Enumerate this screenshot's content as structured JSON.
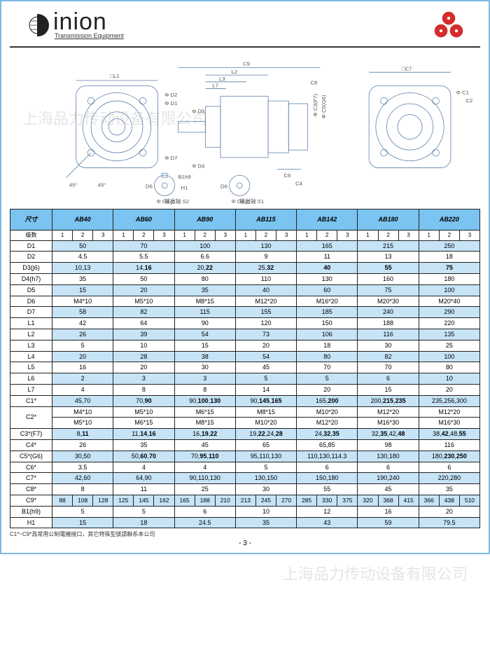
{
  "brand": {
    "name": "inion",
    "tagline": "Transmission Equipment"
  },
  "diagram_labels": {
    "s2": "输出轴 S2",
    "s1": "输出轴 S1",
    "dims": [
      "L1",
      "L2",
      "L3",
      "L7",
      "C9",
      "C8",
      "C7",
      "C1",
      "C2",
      "D1",
      "D2",
      "D4",
      "D5",
      "D7",
      "D6",
      "C4",
      "C6",
      "C3",
      "C5",
      "H1",
      "B1",
      "45°",
      "ΦD3",
      "ΦD3",
      "ΦC5",
      "ΦC3",
      "j6",
      "j6",
      "(G6)",
      "(F7)",
      "h7",
      "h9"
    ]
  },
  "table": {
    "size_label": "尺寸",
    "stage_label": "级数",
    "models": [
      "AB40",
      "AB60",
      "AB90",
      "AB115",
      "AB142",
      "AB180",
      "AB220"
    ],
    "stages": [
      "1",
      "2",
      "3"
    ],
    "rows": [
      {
        "label": "D1",
        "stripe": true,
        "vals": [
          "50",
          "70",
          "100",
          "130",
          "165",
          "215",
          "250"
        ]
      },
      {
        "label": "D2",
        "stripe": false,
        "vals": [
          "4.5",
          "5.5",
          "6.6",
          "9",
          "11",
          "13",
          "18"
        ]
      },
      {
        "label": "D3(j6)",
        "stripe": true,
        "vals": [
          "10,13",
          "14,16",
          "20,22",
          "25,32",
          "40",
          "55",
          "75"
        ],
        "bold": [
          false,
          true,
          true,
          true,
          true,
          true,
          true
        ]
      },
      {
        "label": "D4(h7)",
        "stripe": false,
        "vals": [
          "35",
          "50",
          "80",
          "110",
          "130",
          "160",
          "180"
        ]
      },
      {
        "label": "D5",
        "stripe": true,
        "vals": [
          "15",
          "20",
          "35",
          "40",
          "60",
          "75",
          "100"
        ]
      },
      {
        "label": "D6",
        "stripe": false,
        "vals": [
          "M4*10",
          "M5*10",
          "M8*15",
          "M12*20",
          "M16*20",
          "M20*30",
          "M20*40"
        ]
      },
      {
        "label": "D7",
        "stripe": true,
        "vals": [
          "58",
          "82",
          "115",
          "155",
          "185",
          "240",
          "290"
        ]
      },
      {
        "label": "L1",
        "stripe": false,
        "vals": [
          "42",
          "64",
          "90",
          "120",
          "150",
          "188",
          "220"
        ]
      },
      {
        "label": "L2",
        "stripe": true,
        "vals": [
          "26",
          "39",
          "54",
          "73",
          "106",
          "116",
          "135"
        ]
      },
      {
        "label": "L3",
        "stripe": false,
        "vals": [
          "5",
          "10",
          "15",
          "20",
          "18",
          "30",
          "25"
        ]
      },
      {
        "label": "L4",
        "stripe": true,
        "vals": [
          "20",
          "28",
          "38",
          "54",
          "80",
          "82",
          "100"
        ]
      },
      {
        "label": "L5",
        "stripe": false,
        "vals": [
          "16",
          "20",
          "30",
          "45",
          "70",
          "70",
          "80"
        ]
      },
      {
        "label": "L6",
        "stripe": true,
        "vals": [
          "2",
          "3",
          "3",
          "5",
          "5",
          "6",
          "10"
        ]
      },
      {
        "label": "L7",
        "stripe": false,
        "vals": [
          "4",
          "8",
          "8",
          "14",
          "20",
          "15",
          "20"
        ]
      },
      {
        "label": "C1*",
        "stripe": true,
        "vals": [
          "45,70",
          "70,90",
          "90,100,130",
          "90,145,165",
          "165,200",
          "200,215,235",
          "235,256,300"
        ],
        "bold": [
          false,
          true,
          true,
          true,
          true,
          true,
          false
        ]
      },
      {
        "label": "C2*",
        "stripe": false,
        "twoline": true,
        "vals": [
          [
            "M4*10",
            "M5*10"
          ],
          [
            "M5*10",
            "M6*15"
          ],
          [
            "M6*15",
            "M8*15"
          ],
          [
            "M8*15",
            "M10*20"
          ],
          [
            "M10*20",
            "M12*20"
          ],
          [
            "M12*20",
            "M16*30"
          ],
          [
            "M12*20",
            "M16*30"
          ]
        ]
      },
      {
        "label": "C3*(F7)",
        "stripe": true,
        "vals": [
          "8,11",
          "11,14,16",
          "16,19,22",
          "19,22,24,28",
          "24,32,35",
          "32,35,42,48",
          "38,42,48,55"
        ],
        "bold": [
          true,
          true,
          true,
          true,
          true,
          true,
          true
        ]
      },
      {
        "label": "C4*",
        "stripe": false,
        "vals": [
          "26",
          "35",
          "45",
          "65",
          "65,85",
          "98",
          "116"
        ]
      },
      {
        "label": "C5*(G6)",
        "stripe": true,
        "vals": [
          "30,50",
          "50,60,70",
          "70,95,110",
          "95,110,130",
          "110,130,114.3",
          "130,180",
          "180,230,250"
        ],
        "bold": [
          false,
          true,
          true,
          false,
          false,
          false,
          true
        ]
      },
      {
        "label": "C6*",
        "stripe": false,
        "vals": [
          "3.5",
          "4",
          "4",
          "5",
          "6",
          "6",
          "6"
        ]
      },
      {
        "label": "C7*",
        "stripe": true,
        "vals": [
          "42,60",
          "64,90",
          "90,110,130",
          "130,150",
          "150,180",
          "190,240",
          "220,280"
        ]
      },
      {
        "label": "C8*",
        "stripe": false,
        "vals": [
          "8",
          "11",
          "25",
          "30",
          "55",
          "45",
          "35"
        ]
      }
    ],
    "c9": {
      "label": "C9*",
      "stripe": true,
      "cells": [
        [
          "88",
          "108",
          "128"
        ],
        [
          "125",
          "145",
          "162"
        ],
        [
          "165",
          "188",
          "210"
        ],
        [
          "213",
          "245",
          "270"
        ],
        [
          "285",
          "330",
          "375"
        ],
        [
          "320",
          "368",
          "415"
        ],
        [
          "366",
          "438",
          "510"
        ]
      ]
    },
    "tail": [
      {
        "label": "B1(h9)",
        "stripe": false,
        "vals": [
          "5",
          "5",
          "6",
          "10",
          "12",
          "16",
          "20"
        ]
      },
      {
        "label": "H1",
        "stripe": true,
        "vals": [
          "15",
          "18",
          "24.5",
          "35",
          "43",
          "59",
          "79.5"
        ]
      }
    ]
  },
  "footnote": "C1*~C9*爲常用公制電機接口，其它特殊型號請聯系本公司",
  "page_num": "- 3 -",
  "watermarks": [
    "上海品力传动设备有限公司",
    "上海品力传动设备有限公司"
  ],
  "colors": {
    "header_bg": "#7bc3f0",
    "stripe_bg": "#c7e4f7",
    "border": "#222",
    "diagram_stroke": "#5a7ea8",
    "gear": "#d92a2a"
  }
}
